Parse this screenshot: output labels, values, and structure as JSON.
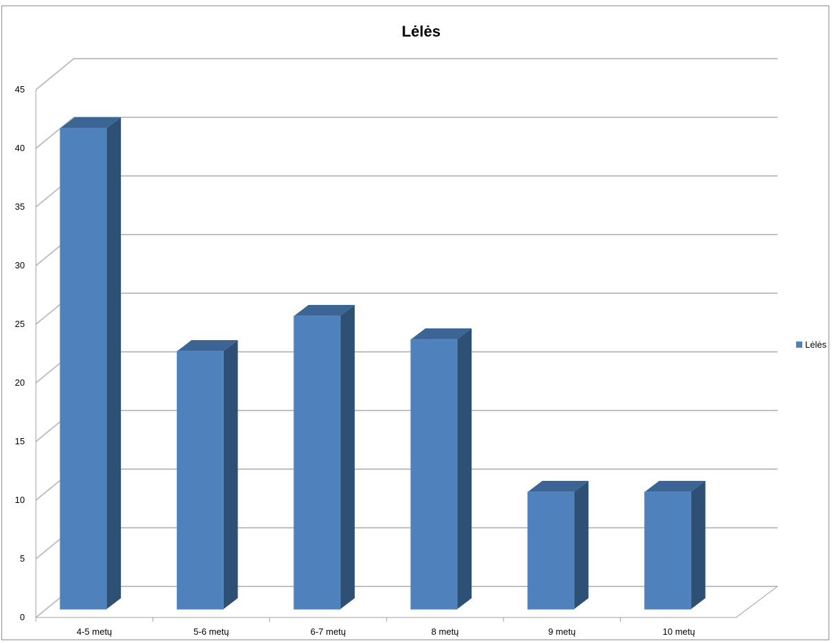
{
  "chart_data": {
    "type": "bar",
    "title": "Lėlės",
    "categories": [
      "4-5 metų",
      "5-6 metų",
      "6-7 metų",
      "8 metų",
      "9 metų",
      "10 metų"
    ],
    "series": [
      {
        "name": "Lėlės",
        "values": [
          41,
          22,
          25,
          23,
          10,
          10
        ],
        "color": "#4f81bd"
      }
    ],
    "y_ticks": [
      "0",
      "5",
      "10",
      "15",
      "20",
      "25",
      "30",
      "35",
      "40",
      "45"
    ],
    "ylim": [
      0,
      45
    ],
    "grid": true,
    "legend_position": "right",
    "style": "3d-column",
    "colors": {
      "bar_front": "#4f81bd",
      "bar_side": "#2f5075",
      "bar_top": "#3d6594",
      "grid": "#c0c0c0"
    }
  }
}
